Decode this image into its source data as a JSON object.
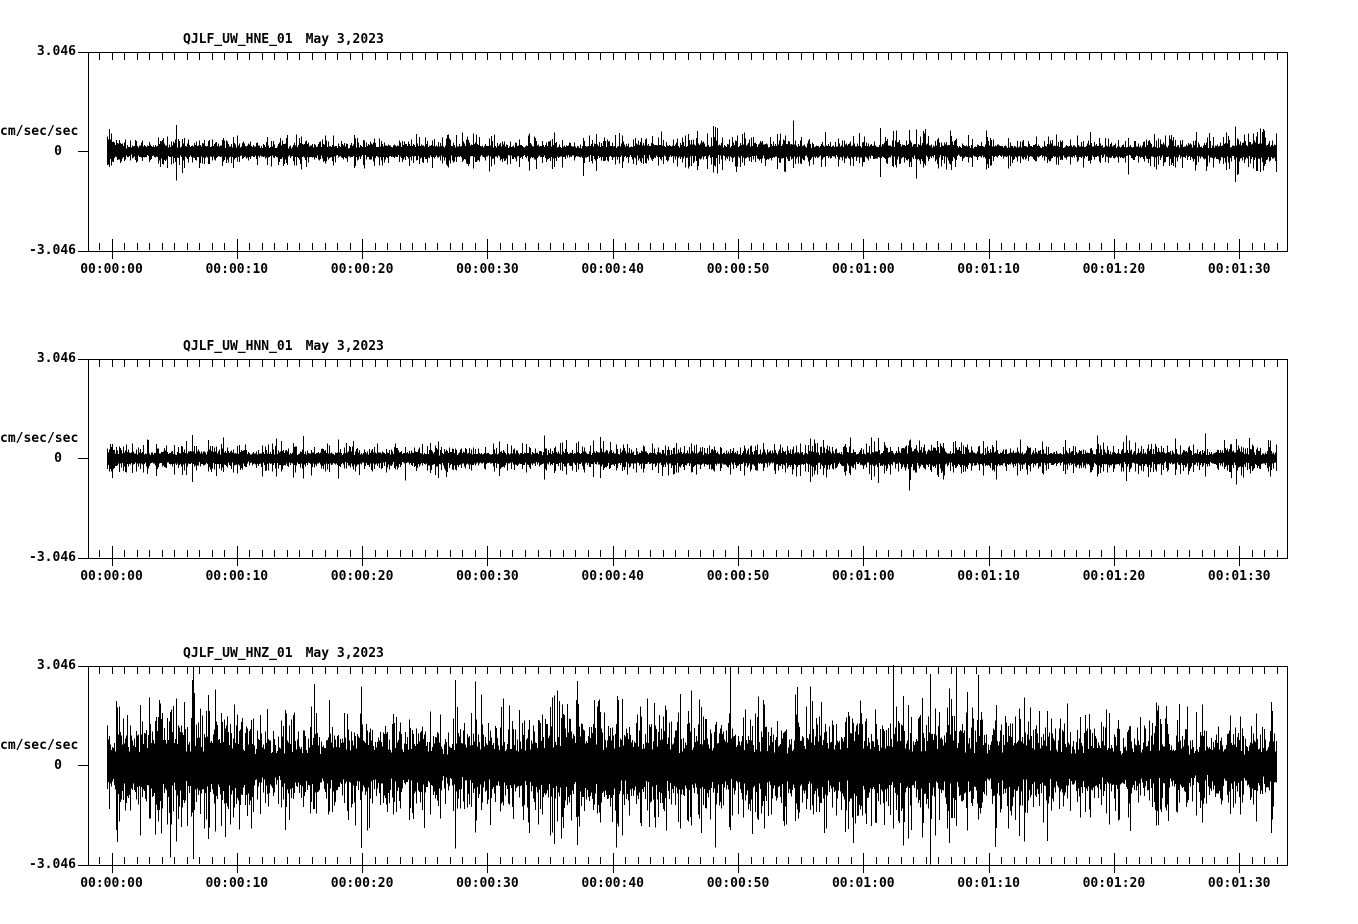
{
  "colors": {
    "background": "#ffffff",
    "foreground": "#000000"
  },
  "chart_data": [
    {
      "type": "line",
      "chart_kind": "seismogram",
      "title": "QJLF_UW_HNE_01",
      "date": "May 3,2023",
      "ylabel": "cm/sec/sec",
      "ylim": [
        -3.046,
        3.046
      ],
      "y_tick_labels": [
        "3.046",
        "0",
        "-3.046"
      ],
      "x_tick_labels": [
        "00:00:00",
        "00:00:10",
        "00:00:20",
        "00:00:30",
        "00:00:40",
        "00:00:50",
        "00:01:00",
        "00:01:10",
        "00:01:20",
        "00:01:30"
      ],
      "x_major_tick_interval_s": 10,
      "x_minor_tick_interval_s": 1,
      "duration_s": 93,
      "legend": "off",
      "grid": "off",
      "waveform": {
        "kind": "seismic-noise",
        "seed": 20230503,
        "core_fraction": 0.3,
        "shape_exponent": 2.4,
        "spike_probability": 0.03,
        "min_band": 0.18,
        "envelope_peak": [
          [
            0,
            1.05
          ],
          [
            1,
            0.55
          ],
          [
            3,
            0.6
          ],
          [
            5,
            0.7
          ],
          [
            8,
            0.55
          ],
          [
            12,
            0.55
          ],
          [
            15,
            0.6
          ],
          [
            20,
            0.55
          ],
          [
            25,
            0.6
          ],
          [
            28,
            0.85
          ],
          [
            30,
            0.55
          ],
          [
            35,
            0.6
          ],
          [
            40,
            0.6
          ],
          [
            44,
            0.65
          ],
          [
            48,
            0.7
          ],
          [
            52,
            0.8
          ],
          [
            55,
            0.75
          ],
          [
            58,
            0.6
          ],
          [
            62,
            0.7
          ],
          [
            64,
            0.85
          ],
          [
            66,
            0.6
          ],
          [
            70,
            0.6
          ],
          [
            75,
            0.55
          ],
          [
            80,
            0.6
          ],
          [
            84,
            0.6
          ],
          [
            87,
            0.7
          ],
          [
            90,
            0.85
          ],
          [
            92,
            0.9
          ],
          [
            93,
            0.7
          ]
        ]
      }
    },
    {
      "type": "line",
      "chart_kind": "seismogram",
      "title": "QJLF_UW_HNN_01",
      "date": "May 3,2023",
      "ylabel": "cm/sec/sec",
      "ylim": [
        -3.046,
        3.046
      ],
      "y_tick_labels": [
        "3.046",
        "0",
        "-3.046"
      ],
      "x_tick_labels": [
        "00:00:00",
        "00:00:10",
        "00:00:20",
        "00:00:30",
        "00:00:40",
        "00:00:50",
        "00:01:00",
        "00:01:10",
        "00:01:20",
        "00:01:30"
      ],
      "x_major_tick_interval_s": 10,
      "x_minor_tick_interval_s": 1,
      "duration_s": 93,
      "legend": "off",
      "grid": "off",
      "waveform": {
        "kind": "seismic-noise",
        "seed": 1103,
        "core_fraction": 0.32,
        "shape_exponent": 2.4,
        "spike_probability": 0.02,
        "min_band": 0.17,
        "envelope_peak": [
          [
            0,
            1.0
          ],
          [
            1,
            0.6
          ],
          [
            4,
            0.65
          ],
          [
            7,
            0.7
          ],
          [
            10,
            0.6
          ],
          [
            14,
            0.6
          ],
          [
            18,
            0.58
          ],
          [
            22,
            0.6
          ],
          [
            26,
            0.62
          ],
          [
            30,
            0.55
          ],
          [
            34,
            0.6
          ],
          [
            38,
            0.62
          ],
          [
            42,
            0.58
          ],
          [
            46,
            0.6
          ],
          [
            50,
            0.6
          ],
          [
            54,
            0.62
          ],
          [
            58,
            0.68
          ],
          [
            62,
            0.72
          ],
          [
            65,
            0.8
          ],
          [
            68,
            0.7
          ],
          [
            72,
            0.62
          ],
          [
            76,
            0.6
          ],
          [
            80,
            0.56
          ],
          [
            84,
            0.6
          ],
          [
            88,
            0.64
          ],
          [
            91,
            0.68
          ],
          [
            93,
            0.6
          ]
        ]
      }
    },
    {
      "type": "line",
      "chart_kind": "seismogram",
      "title": "QJLF_UW_HNZ_01",
      "date": "May 3,2023",
      "ylabel": "cm/sec/sec",
      "ylim": [
        -3.046,
        3.046
      ],
      "y_tick_labels": [
        "3.046",
        "0",
        "-3.046"
      ],
      "x_tick_labels": [
        "00:00:00",
        "00:00:10",
        "00:00:20",
        "00:00:30",
        "00:00:40",
        "00:00:50",
        "00:01:00",
        "00:01:10",
        "00:01:20",
        "00:01:30"
      ],
      "x_major_tick_interval_s": 10,
      "x_minor_tick_interval_s": 1,
      "duration_s": 93,
      "legend": "off",
      "grid": "off",
      "waveform": {
        "kind": "seismic-noise",
        "seed": 42,
        "core_fraction": 0.32,
        "shape_exponent": 1.7,
        "spike_probability": 0.035,
        "min_band": 0.5,
        "envelope_peak": [
          [
            0,
            2.2
          ],
          [
            3,
            2.4
          ],
          [
            5,
            2.6
          ],
          [
            8,
            3.0
          ],
          [
            10,
            2.2
          ],
          [
            13,
            1.9
          ],
          [
            16,
            2.2
          ],
          [
            20,
            2.4
          ],
          [
            23,
            2.2
          ],
          [
            26,
            2.0
          ],
          [
            30,
            2.2
          ],
          [
            33,
            2.4
          ],
          [
            36,
            2.8
          ],
          [
            40,
            2.9
          ],
          [
            43,
            2.4
          ],
          [
            46,
            2.5
          ],
          [
            50,
            2.6
          ],
          [
            53,
            2.3
          ],
          [
            56,
            2.6
          ],
          [
            60,
            2.4
          ],
          [
            63,
            2.5
          ],
          [
            66,
            2.6
          ],
          [
            70,
            2.4
          ],
          [
            73,
            2.5
          ],
          [
            76,
            2.2
          ],
          [
            80,
            2.0
          ],
          [
            83,
            2.2
          ],
          [
            86,
            1.9
          ],
          [
            89,
            2.0
          ],
          [
            91,
            2.2
          ],
          [
            93,
            2.3
          ]
        ]
      }
    }
  ]
}
